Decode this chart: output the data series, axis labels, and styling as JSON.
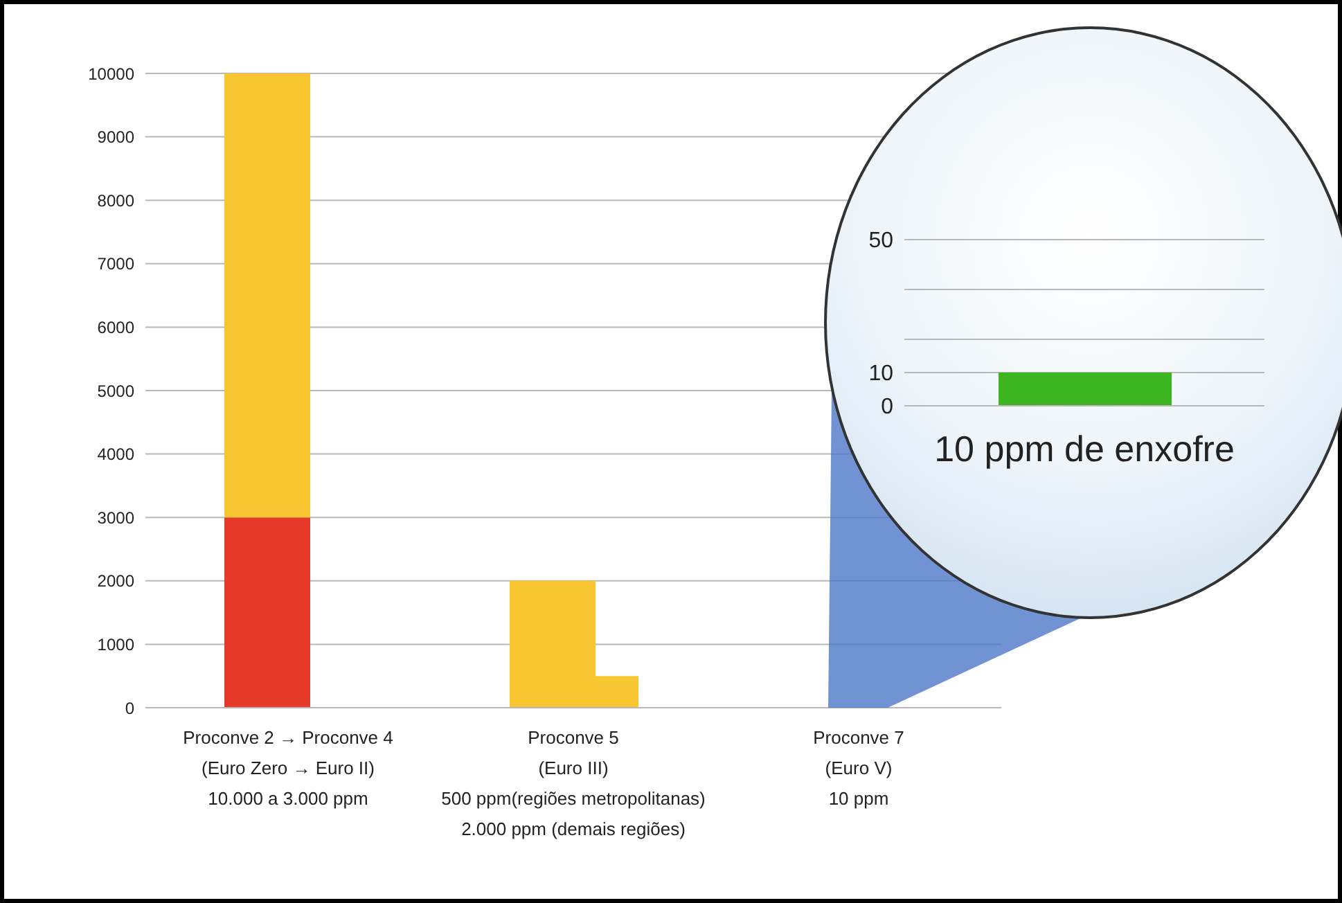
{
  "chart_data": [
    {
      "type": "bar",
      "categories": [
        "Proconve 2 → Proconve 4\n(Euro Zero → Euro II)\n10.000 a 3.000 ppm",
        "Proconve 5\n(Euro III)\n500 ppm(regiões metropolitanas)\n2.000 ppm (demais regiões)",
        "Proconve 7\n(Euro V)\n10 ppm"
      ],
      "series": [
        {
          "color": "#e53a2a",
          "values": [
            3000,
            null,
            null
          ]
        },
        {
          "color": "#f8c630",
          "values": [
            7000,
            2000,
            null
          ],
          "base": [
            3000,
            0,
            null
          ]
        },
        {
          "color": "#f8c630",
          "values": [
            null,
            500,
            null
          ]
        },
        {
          "color": "#d8d8d8",
          "values": [
            null,
            null,
            10
          ]
        }
      ],
      "ylim": [
        0,
        10000
      ],
      "yticks": [
        0,
        1000,
        2000,
        3000,
        4000,
        5000,
        6000,
        7000,
        8000,
        9000,
        10000
      ],
      "grid": "y"
    },
    {
      "type": "bar",
      "categories": [
        null
      ],
      "values": [
        10
      ],
      "color": "#3cb521",
      "ylim": [
        0,
        50
      ],
      "yticks": [
        0,
        10,
        {
          "value": 20,
          "label": null
        },
        {
          "value": 35,
          "label": null
        },
        50
      ],
      "grid": "y",
      "tick_labels": "y",
      "annotations": [
        "10 ppm de enxofre"
      ]
    }
  ]
}
